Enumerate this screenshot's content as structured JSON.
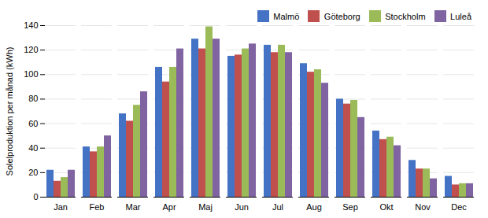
{
  "chart_data": {
    "type": "bar",
    "categories": [
      "Jan",
      "Feb",
      "Mar",
      "Apr",
      "Maj",
      "Jun",
      "Jul",
      "Aug",
      "Sep",
      "Okt",
      "Nov",
      "Dec"
    ],
    "series": [
      {
        "name": "Malmö",
        "color": "#4472C4",
        "values": [
          22,
          41,
          68,
          106,
          129,
          115,
          124,
          109,
          80,
          54,
          30,
          17
        ]
      },
      {
        "name": "Göteborg",
        "color": "#C0504D",
        "values": [
          13,
          37,
          62,
          94,
          121,
          116,
          118,
          102,
          76,
          47,
          23,
          10
        ]
      },
      {
        "name": "Stockholm",
        "color": "#9BBB59",
        "values": [
          16,
          41,
          75,
          106,
          139,
          121,
          124,
          104,
          79,
          49,
          23,
          11
        ]
      },
      {
        "name": "Luleå",
        "color": "#8064A2",
        "values": [
          22,
          50,
          86,
          121,
          129,
          125,
          118,
          93,
          65,
          42,
          15,
          11
        ]
      }
    ],
    "ylabel": "Solelproduktion per månad (kWh)",
    "ylim": [
      0,
      140
    ],
    "yticks": [
      0,
      20,
      40,
      60,
      80,
      100,
      120,
      140
    ],
    "grid": true,
    "legend": "upper right"
  }
}
